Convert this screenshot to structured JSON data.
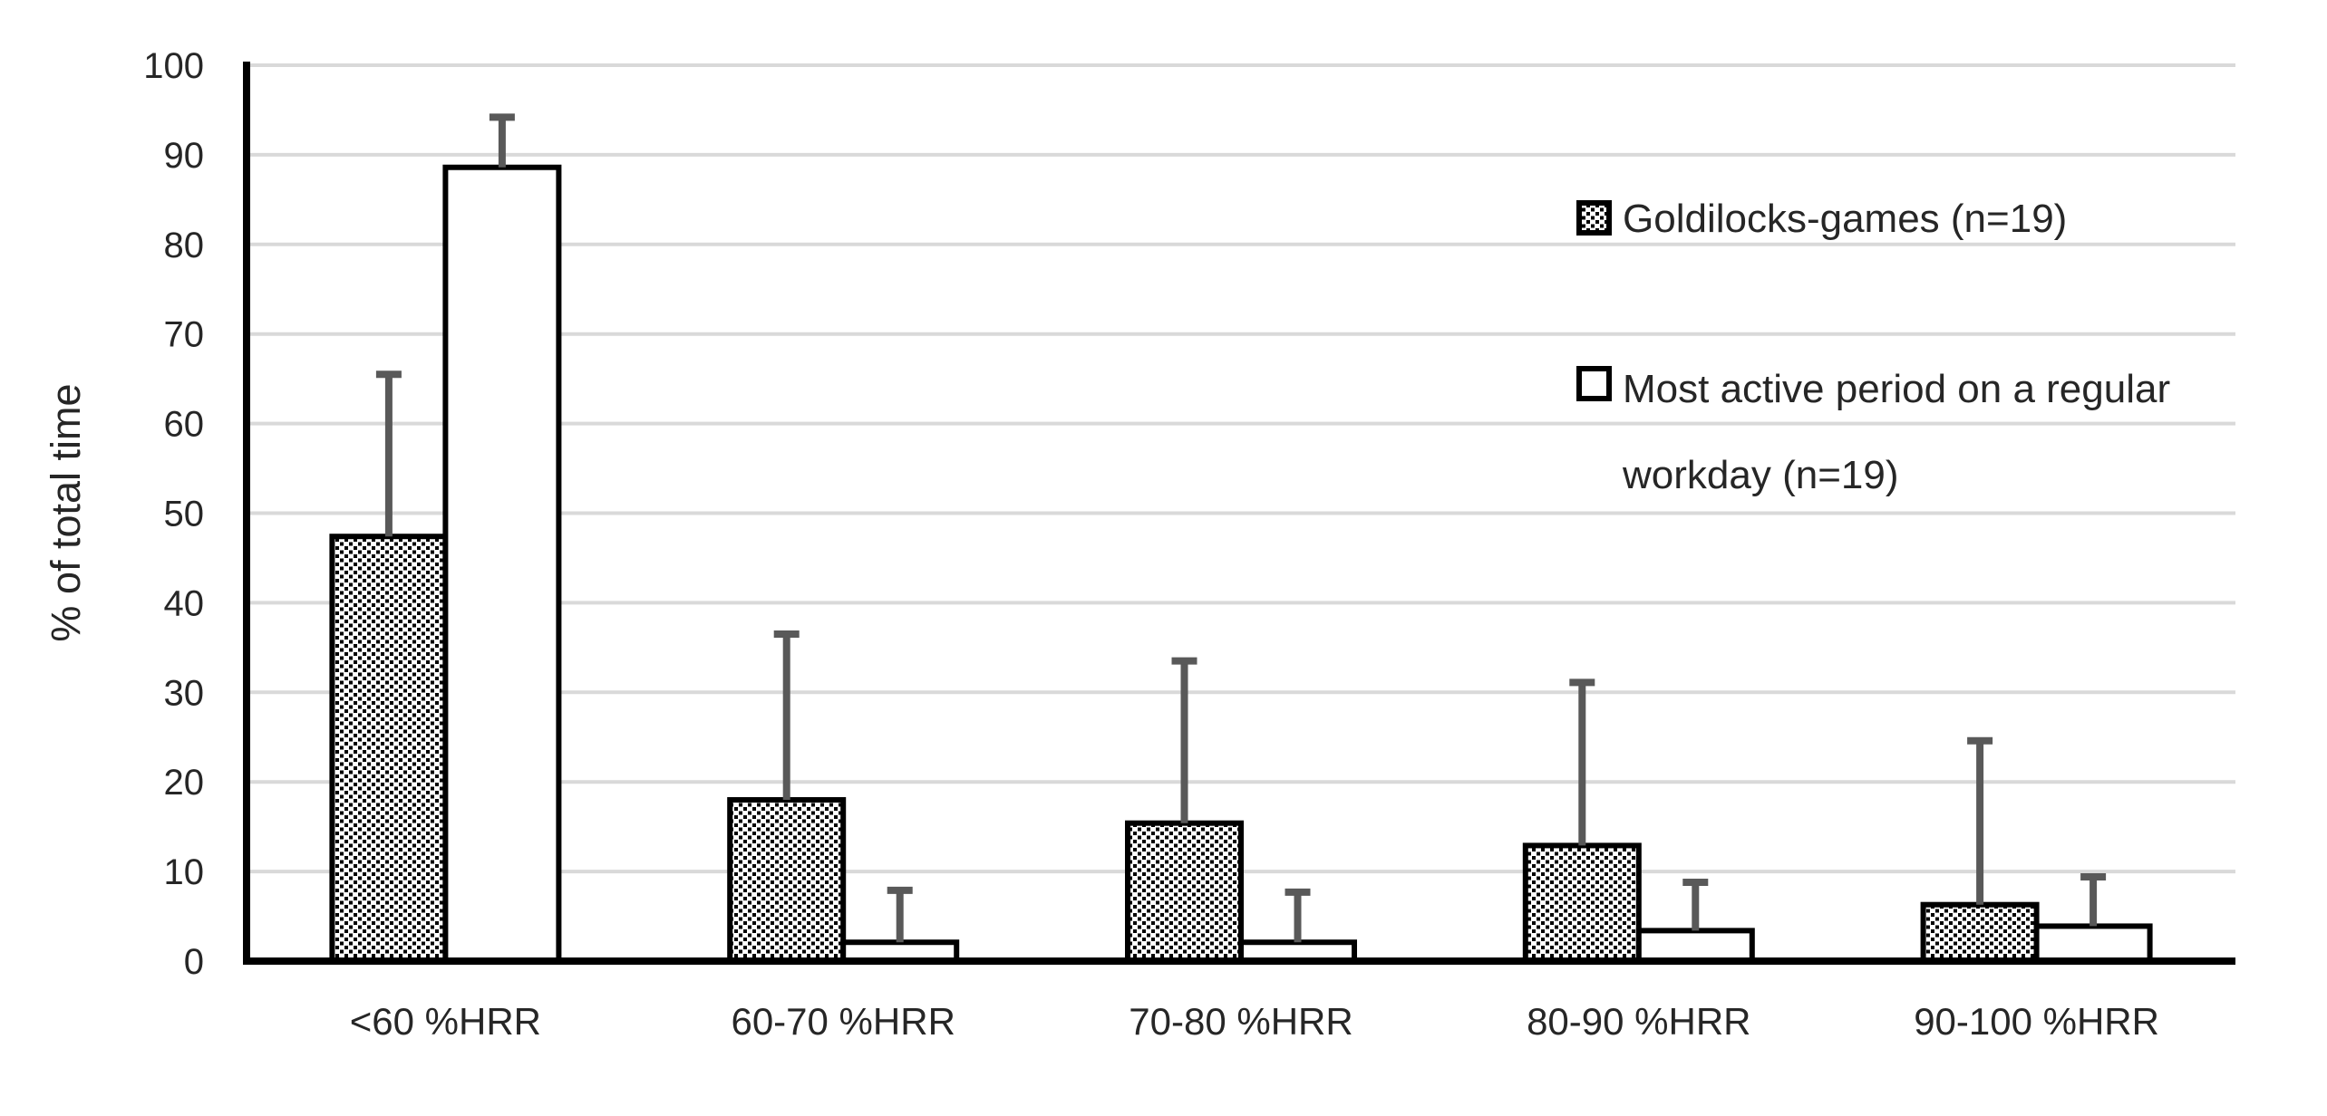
{
  "chart_data": {
    "type": "bar",
    "title": "",
    "xlabel": "",
    "ylabel": "% of total time",
    "ylim": [
      0,
      100
    ],
    "yticks": [
      0,
      10,
      20,
      30,
      40,
      50,
      60,
      70,
      80,
      90,
      100
    ],
    "grid": true,
    "legend_position": "upper-right",
    "categories": [
      "<60 %HRR",
      "60-70 %HRR",
      "70-80 %HRR",
      "80-90 %HRR",
      "90-100 %HRR"
    ],
    "series": [
      {
        "name": "Goldilocks-games (n=19)",
        "legend_lines": [
          "Goldilocks-games (n=19)"
        ],
        "pattern": "dotted",
        "values": [
          47.4,
          18.0,
          15.4,
          12.9,
          6.3
        ],
        "error_up": [
          18.1,
          18.5,
          18.1,
          18.2,
          18.3
        ]
      },
      {
        "name": "Most active period on a regular workday (n=19)",
        "legend_lines": [
          "Most active period on a regular",
          "workday (n=19)"
        ],
        "pattern": "solid-white",
        "values": [
          88.6,
          2.1,
          2.1,
          3.4,
          3.9
        ],
        "error_up": [
          5.6,
          5.8,
          5.6,
          5.4,
          5.5
        ]
      }
    ],
    "colors": {
      "bar_border": "#000000",
      "dot_pattern": "#000000",
      "bar_fill_white": "#ffffff",
      "error_bar": "#595959",
      "gridline": "#d9d9d9",
      "axis": "#000000",
      "text": "#262626",
      "background": "#ffffff"
    }
  }
}
